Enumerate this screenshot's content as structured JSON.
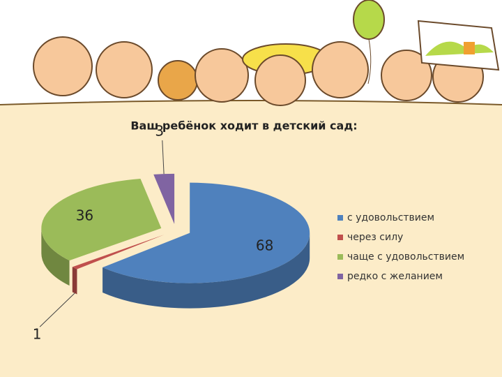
{
  "chart_data": {
    "type": "pie",
    "title": "Ваш ребёнок ходит в детский сад:",
    "categories": [
      "с удовольствием",
      "через силу",
      "чаще с удовольствием",
      "редко с желанием"
    ],
    "values": [
      68,
      1,
      36,
      3
    ],
    "colors": [
      "#4f81bd",
      "#c0504d",
      "#9bbb59",
      "#8064a2"
    ],
    "legend": "right"
  }
}
